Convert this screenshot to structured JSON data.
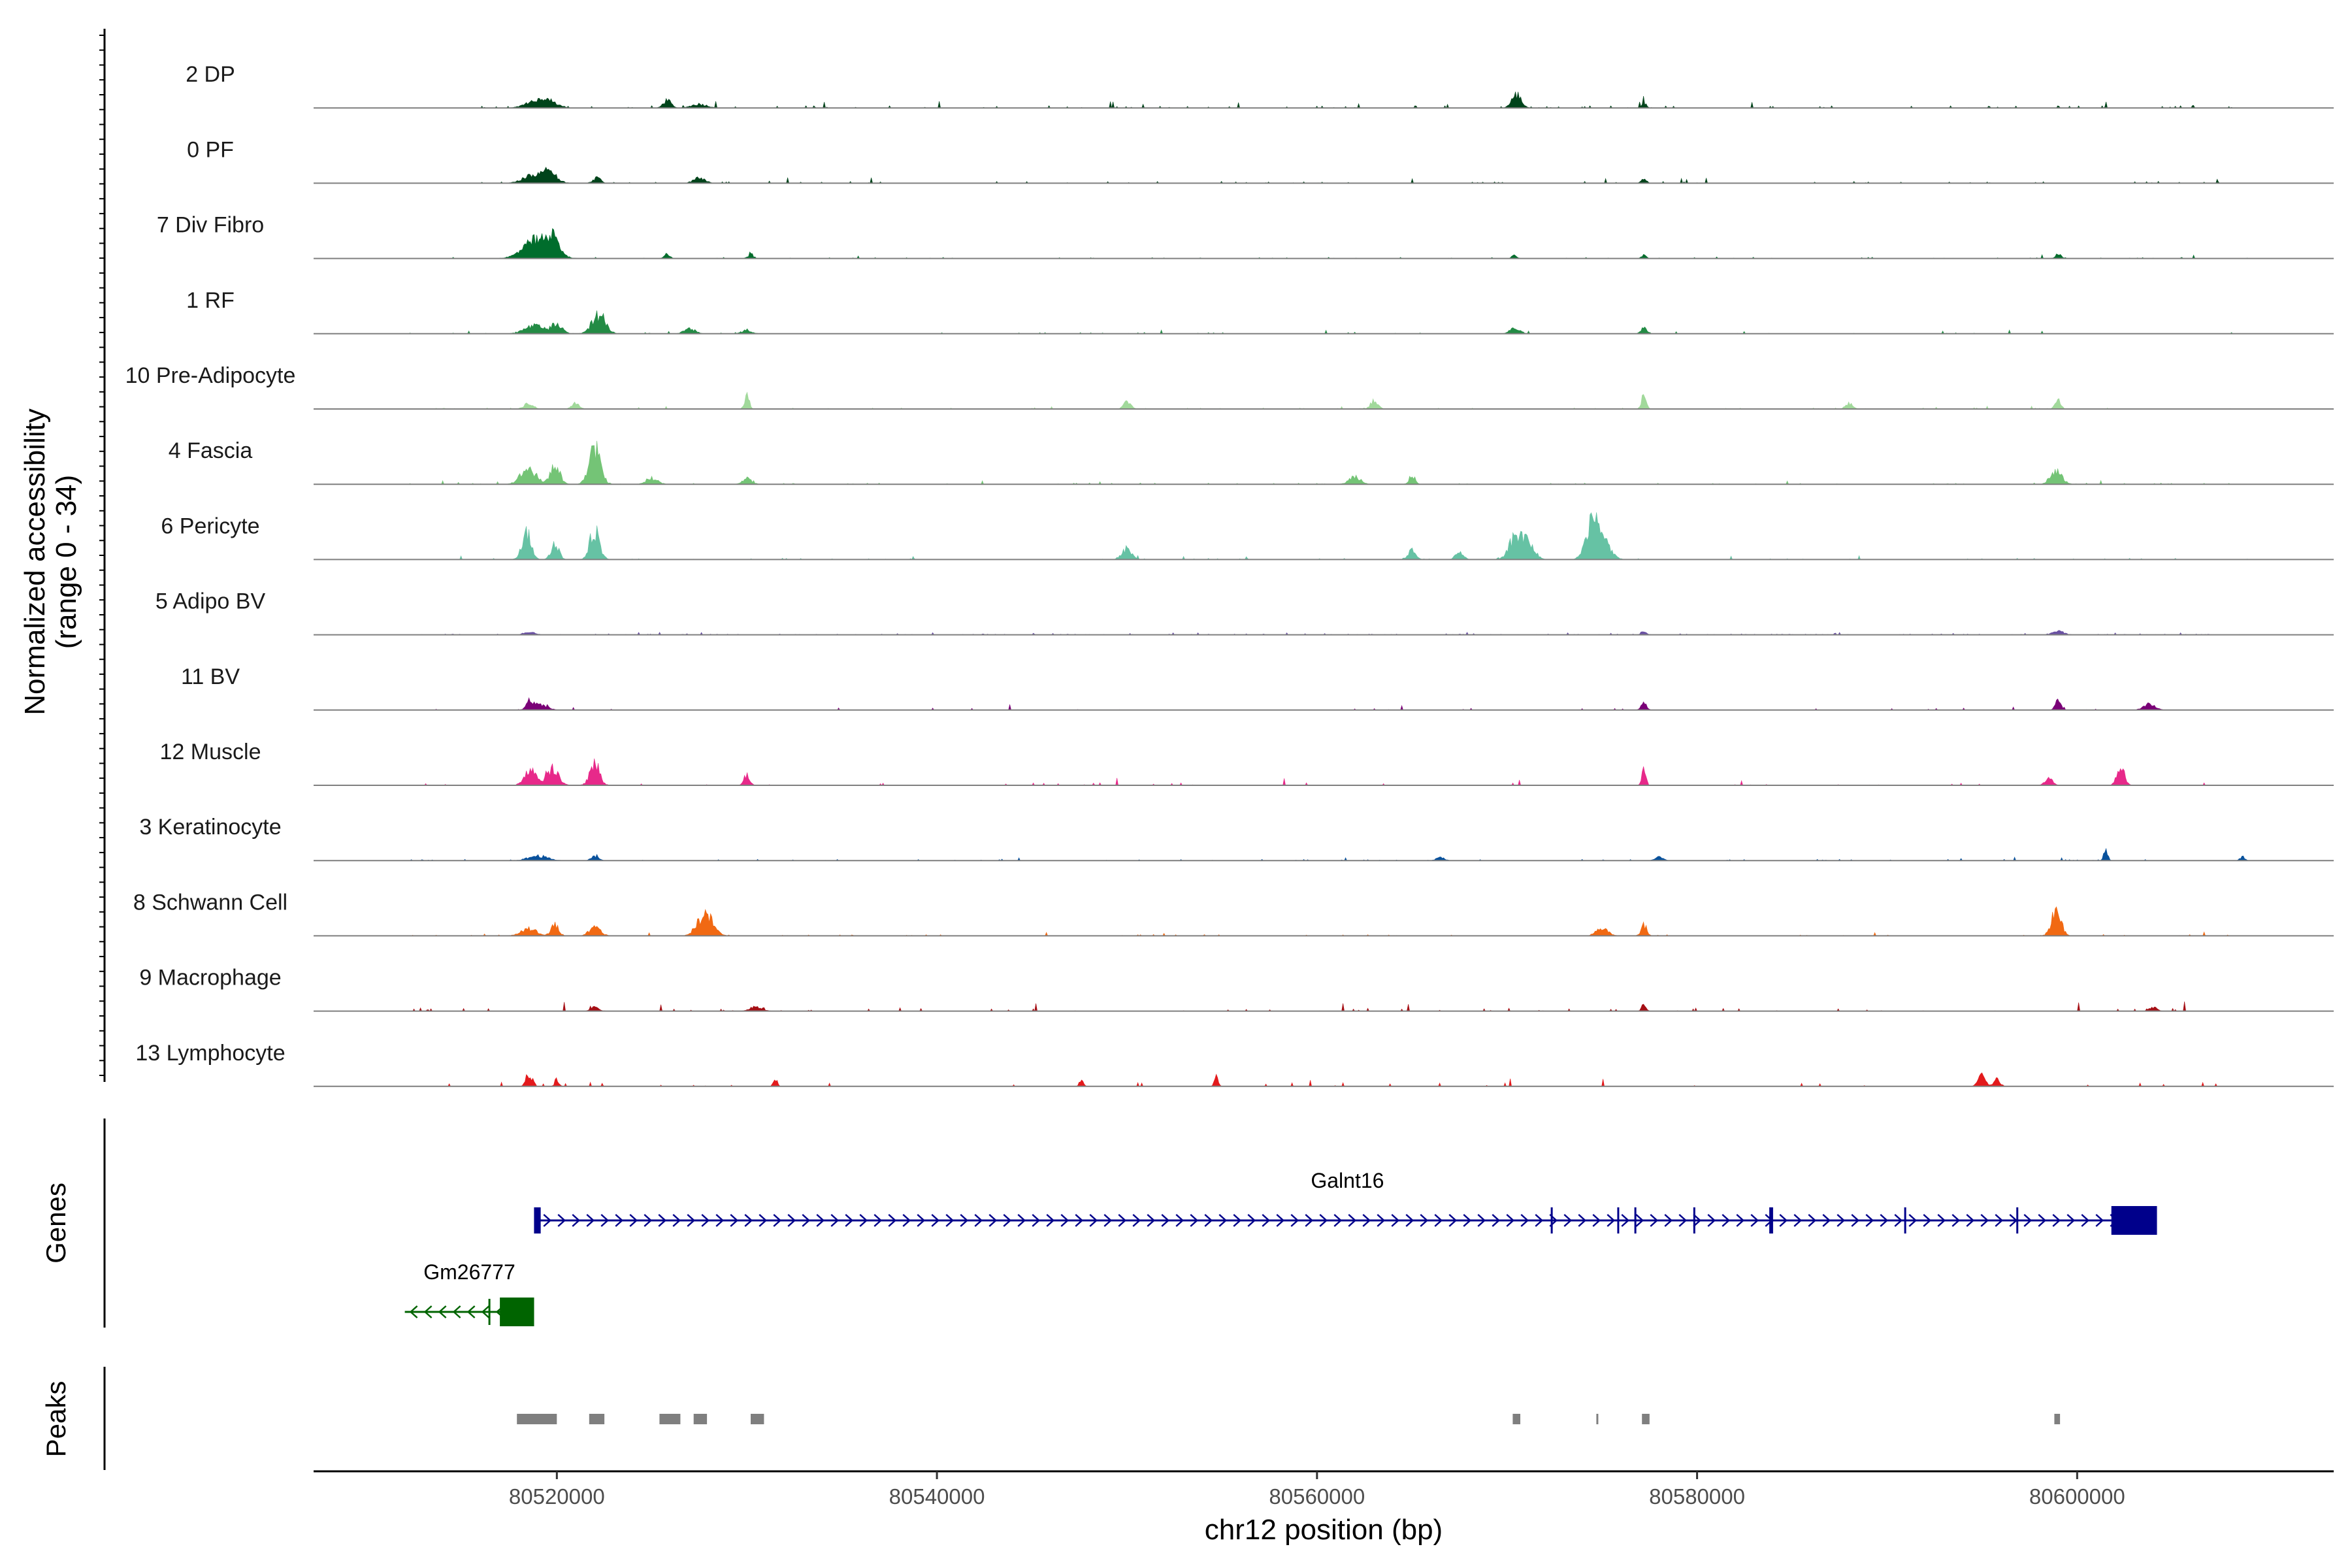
{
  "chart_data": {
    "type": "area",
    "title": "",
    "xlabel": "chr12 position (bp)",
    "ylabel": "Normalized accessibility (range 0 - 34)",
    "ylabel_lines": [
      "Normalized accessibility",
      "(range 0 - 34)"
    ],
    "ylim": [
      0,
      34
    ],
    "xlim": [
      80507200,
      80613500
    ],
    "x_ticks": [
      80520000,
      80540000,
      80560000,
      80580000,
      80600000
    ],
    "x_tick_labels": [
      "80520000",
      "80540000",
      "80560000",
      "80580000",
      "80600000"
    ],
    "baseline_color": "#7f7f7f",
    "track_start": 80512000,
    "track_end": 80609000,
    "series": [
      {
        "name": "2 DP",
        "color": "#00441b",
        "noise": 1.1,
        "density": 0.07,
        "peaks": [
          [
            80518800,
            3.5,
            500
          ],
          [
            80519600,
            4.0,
            450
          ],
          [
            80525800,
            5.0,
            200
          ],
          [
            80527500,
            2.5,
            400
          ],
          [
            80570500,
            8.5,
            250
          ],
          [
            80577200,
            3.5,
            120
          ]
        ]
      },
      {
        "name": "0 PF",
        "color": "#00441b",
        "noise": 0.9,
        "density": 0.07,
        "peaks": [
          [
            80518800,
            5.0,
            550
          ],
          [
            80519600,
            6.0,
            400
          ],
          [
            80522100,
            3.5,
            200
          ],
          [
            80527500,
            3.5,
            300
          ],
          [
            80577200,
            3.0,
            130
          ]
        ]
      },
      {
        "name": "7 Div Fibro",
        "color": "#006d2c",
        "noise": 0.6,
        "density": 0.04,
        "peaks": [
          [
            80519000,
            12.0,
            700
          ],
          [
            80519800,
            10.0,
            300
          ],
          [
            80525800,
            3.0,
            150
          ],
          [
            80530200,
            2.5,
            150
          ],
          [
            80570400,
            2.5,
            120
          ],
          [
            80577200,
            2.5,
            120
          ],
          [
            80599000,
            3.0,
            150
          ]
        ]
      },
      {
        "name": "1 RF",
        "color": "#238b45",
        "noise": 0.6,
        "density": 0.05,
        "peaks": [
          [
            80518800,
            5.0,
            500
          ],
          [
            80520000,
            6.0,
            300
          ],
          [
            80522200,
            12.0,
            350
          ],
          [
            80527000,
            3.0,
            300
          ],
          [
            80530000,
            2.5,
            250
          ],
          [
            80570400,
            3.5,
            250
          ],
          [
            80577200,
            4.0,
            150
          ]
        ]
      },
      {
        "name": "10 Pre-Adipocyte",
        "color": "#a1d99b",
        "noise": 0.5,
        "density": 0.06,
        "peaks": [
          [
            80518500,
            3.5,
            250
          ],
          [
            80521000,
            3.5,
            200
          ],
          [
            80530000,
            9.0,
            120
          ],
          [
            80550000,
            4.0,
            200
          ],
          [
            80563000,
            5.0,
            200
          ],
          [
            80577200,
            10.0,
            120
          ],
          [
            80599000,
            6.0,
            150
          ],
          [
            80588000,
            3.5,
            200
          ]
        ]
      },
      {
        "name": "4 Fascia",
        "color": "#74c476",
        "noise": 0.6,
        "density": 0.05,
        "peaks": [
          [
            80518500,
            10.0,
            400
          ],
          [
            80519900,
            12.0,
            250
          ],
          [
            80522000,
            22.0,
            300
          ],
          [
            80525000,
            4.0,
            300
          ],
          [
            80530000,
            4.0,
            250
          ],
          [
            80562000,
            5.0,
            300
          ],
          [
            80565000,
            6.0,
            150
          ],
          [
            80598900,
            8.0,
            300
          ]
        ]
      },
      {
        "name": "6 Pericyte",
        "color": "#66c2a4",
        "noise": 0.6,
        "density": 0.05,
        "peaks": [
          [
            80518400,
            17.0,
            250
          ],
          [
            80519900,
            11.0,
            200
          ],
          [
            80522000,
            19.0,
            250
          ],
          [
            80550000,
            7.0,
            250
          ],
          [
            80565000,
            6.0,
            200
          ],
          [
            80567500,
            5.0,
            200
          ],
          [
            80570500,
            16.0,
            350
          ],
          [
            80571200,
            9.0,
            300
          ],
          [
            80574500,
            22.0,
            350
          ],
          [
            80575000,
            11.0,
            400
          ]
        ]
      },
      {
        "name": "5 Adipo BV",
        "color": "#6a51a3",
        "noise": 0.4,
        "density": 0.15,
        "peaks": [
          [
            80518600,
            2.0,
            250
          ],
          [
            80577200,
            2.0,
            150
          ],
          [
            80599000,
            2.0,
            300
          ]
        ]
      },
      {
        "name": "11 BV",
        "color": "#7a0177",
        "noise": 1.0,
        "density": 0.035,
        "peaks": [
          [
            80518600,
            6.0,
            200
          ],
          [
            80519200,
            3.0,
            350
          ],
          [
            80577200,
            4.0,
            150
          ],
          [
            80599000,
            7.0,
            150
          ],
          [
            80603800,
            4.0,
            300
          ]
        ]
      },
      {
        "name": "12 Muscle",
        "color": "#e7298a",
        "noise": 1.2,
        "density": 0.035,
        "peaks": [
          [
            80518600,
            10.0,
            300
          ],
          [
            80519800,
            11.0,
            300
          ],
          [
            80522000,
            14.0,
            250
          ],
          [
            80530000,
            7.0,
            150
          ],
          [
            80577200,
            11.0,
            100
          ],
          [
            80598500,
            5.0,
            200
          ],
          [
            80602300,
            12.0,
            200
          ]
        ]
      },
      {
        "name": "3 Keratinocyte",
        "color": "#08519c",
        "noise": 0.6,
        "density": 0.05,
        "peaks": [
          [
            80519000,
            3.0,
            500
          ],
          [
            80522000,
            2.5,
            200
          ],
          [
            80566500,
            2.5,
            200
          ],
          [
            80578000,
            2.5,
            200
          ],
          [
            80601500,
            9.0,
            100
          ],
          [
            80608700,
            2.5,
            120
          ]
        ]
      },
      {
        "name": "8 Schwann Cell",
        "color": "#f16913",
        "noise": 0.6,
        "density": 0.04,
        "peaks": [
          [
            80518500,
            5.0,
            400
          ],
          [
            80519900,
            7.0,
            200
          ],
          [
            80522000,
            5.0,
            300
          ],
          [
            80527800,
            14.0,
            400
          ],
          [
            80575000,
            5.0,
            300
          ],
          [
            80577200,
            7.0,
            150
          ],
          [
            80598900,
            17.0,
            250
          ]
        ]
      },
      {
        "name": "9 Macrophage",
        "color": "#a50f15",
        "noise": 1.5,
        "density": 0.045,
        "peaks": [
          [
            80522000,
            2.5,
            200
          ],
          [
            80530500,
            3.0,
            300
          ],
          [
            80577200,
            4.0,
            120
          ],
          [
            80604000,
            2.5,
            200
          ]
        ]
      },
      {
        "name": "13 Lymphocyte",
        "color": "#e31a1c",
        "noise": 2.0,
        "density": 0.018,
        "peaks": [
          [
            80518400,
            6.0,
            100
          ],
          [
            80518700,
            6.0,
            100
          ],
          [
            80520000,
            5.0,
            100
          ],
          [
            80531500,
            5.0,
            100
          ],
          [
            80547600,
            5.0,
            100
          ],
          [
            80554700,
            6.0,
            100
          ],
          [
            80595000,
            7.0,
            200
          ],
          [
            80595800,
            5.0,
            150
          ],
          [
            80610400,
            3.5,
            120
          ]
        ]
      }
    ],
    "genes": {
      "panel_label": "Genes",
      "items": [
        {
          "name": "Galnt16",
          "strand": "+",
          "color": "#00008b",
          "start": 80519000,
          "end": 80604200,
          "exons": [
            [
              80518800,
              80519150
            ],
            [
              80572300,
              80572400
            ],
            [
              80575800,
              80575900
            ],
            [
              80576700,
              80576800
            ],
            [
              80579800,
              80579900
            ],
            [
              80583800,
              80584000
            ],
            [
              80590900,
              80591000
            ],
            [
              80596800,
              80596900
            ],
            [
              80601800,
              80604200
            ]
          ]
        },
        {
          "name": "Gm26777",
          "strand": "-",
          "color": "#006400",
          "start": 80512000,
          "end": 80518800,
          "exons": [
            [
              80516400,
              80516500
            ],
            [
              80517000,
              80518800
            ]
          ]
        }
      ]
    },
    "peaks": {
      "panel_label": "Peaks",
      "color": "#7f7f7f",
      "regions": [
        [
          80517900,
          80520000
        ],
        [
          80521700,
          80522500
        ],
        [
          80525400,
          80526500
        ],
        [
          80527200,
          80527900
        ],
        [
          80530200,
          80530900
        ],
        [
          80570300,
          80570700
        ],
        [
          80574700,
          80574800
        ],
        [
          80577100,
          80577500
        ],
        [
          80598800,
          80599100
        ]
      ]
    }
  }
}
